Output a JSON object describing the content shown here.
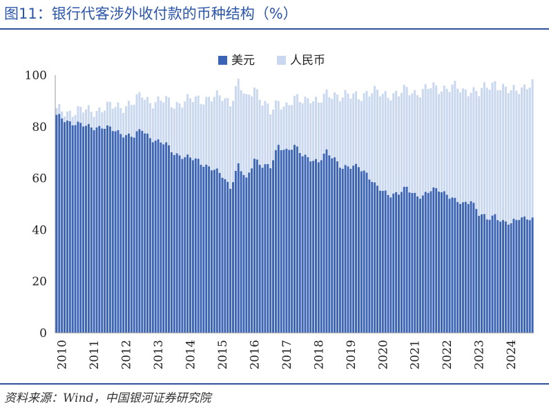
{
  "header": {
    "title": "图11：银行代客涉外收付款的币种结构（%）"
  },
  "footer": {
    "source": "资料来源：Wind，中国银河证券研究院"
  },
  "chart_data": {
    "type": "bar",
    "stacked": true,
    "title": "",
    "xlabel": "",
    "ylabel": "",
    "ylim": [
      0,
      100
    ],
    "y_ticks": [
      "0",
      "20",
      "40",
      "60",
      "80",
      "100"
    ],
    "x_ticks": [
      "2010",
      "2011",
      "2012",
      "2013",
      "2014",
      "2015",
      "2016",
      "2017",
      "2018",
      "2019",
      "2020",
      "2021",
      "2022",
      "2023",
      "2024"
    ],
    "legend_position": "top-center",
    "grid": false,
    "series": [
      {
        "name": "美元",
        "color": "#3c64b4",
        "anchors": [
          [
            "2010-01",
            84
          ],
          [
            "2010-06",
            82
          ],
          [
            "2010-12",
            80
          ],
          [
            "2011-06",
            80
          ],
          [
            "2011-12",
            78
          ],
          [
            "2012-06",
            76
          ],
          [
            "2012-09",
            79
          ],
          [
            "2012-12",
            76
          ],
          [
            "2013-03",
            74
          ],
          [
            "2013-06",
            73
          ],
          [
            "2013-09",
            70
          ],
          [
            "2014-01",
            68
          ],
          [
            "2014-06",
            67
          ],
          [
            "2014-12",
            63
          ],
          [
            "2015-03",
            61
          ],
          [
            "2015-06",
            57
          ],
          [
            "2015-09",
            65
          ],
          [
            "2015-12",
            59
          ],
          [
            "2016-03",
            68
          ],
          [
            "2016-06",
            65
          ],
          [
            "2016-09",
            64
          ],
          [
            "2016-12",
            73
          ],
          [
            "2017-03",
            71
          ],
          [
            "2017-06",
            72
          ],
          [
            "2017-09",
            69
          ],
          [
            "2017-12",
            68
          ],
          [
            "2018-03",
            66
          ],
          [
            "2018-06",
            70
          ],
          [
            "2018-09",
            68
          ],
          [
            "2018-12",
            64
          ],
          [
            "2019-03",
            64
          ],
          [
            "2019-06",
            65
          ],
          [
            "2019-09",
            62
          ],
          [
            "2019-12",
            57
          ],
          [
            "2020-03",
            55
          ],
          [
            "2020-06",
            54
          ],
          [
            "2020-09",
            54
          ],
          [
            "2020-12",
            56
          ],
          [
            "2021-03",
            54
          ],
          [
            "2021-06",
            53
          ],
          [
            "2021-09",
            55
          ],
          [
            "2021-12",
            56
          ],
          [
            "2022-03",
            54
          ],
          [
            "2022-06",
            51
          ],
          [
            "2022-09",
            50
          ],
          [
            "2022-12",
            52
          ],
          [
            "2023-03",
            46
          ],
          [
            "2023-06",
            44
          ],
          [
            "2023-09",
            46
          ],
          [
            "2023-12",
            43
          ],
          [
            "2024-03",
            42
          ],
          [
            "2024-06",
            45
          ],
          [
            "2024-09",
            45
          ],
          [
            "2024-12",
            43
          ]
        ]
      },
      {
        "name": "人民币",
        "color": "#c9d8ef",
        "anchors": [
          [
            "2010-01",
            2
          ],
          [
            "2010-06",
            4
          ],
          [
            "2010-12",
            6
          ],
          [
            "2011-06",
            7
          ],
          [
            "2011-12",
            10
          ],
          [
            "2012-06",
            13
          ],
          [
            "2012-12",
            14
          ],
          [
            "2013-06",
            17
          ],
          [
            "2013-12",
            21
          ],
          [
            "2014-06",
            24
          ],
          [
            "2014-12",
            28
          ],
          [
            "2015-06",
            33
          ],
          [
            "2015-12",
            31
          ],
          [
            "2016-06",
            25
          ],
          [
            "2016-12",
            17
          ],
          [
            "2017-06",
            18
          ],
          [
            "2017-12",
            24
          ],
          [
            "2018-06",
            22
          ],
          [
            "2018-12",
            28
          ],
          [
            "2019-06",
            27
          ],
          [
            "2019-12",
            36
          ],
          [
            "2020-06",
            39
          ],
          [
            "2020-12",
            38
          ],
          [
            "2021-06",
            41
          ],
          [
            "2021-12",
            39
          ],
          [
            "2022-06",
            44
          ],
          [
            "2022-12",
            43
          ],
          [
            "2023-06",
            51
          ],
          [
            "2023-12",
            52
          ],
          [
            "2024-06",
            50
          ],
          [
            "2024-12",
            53
          ]
        ]
      }
    ]
  }
}
